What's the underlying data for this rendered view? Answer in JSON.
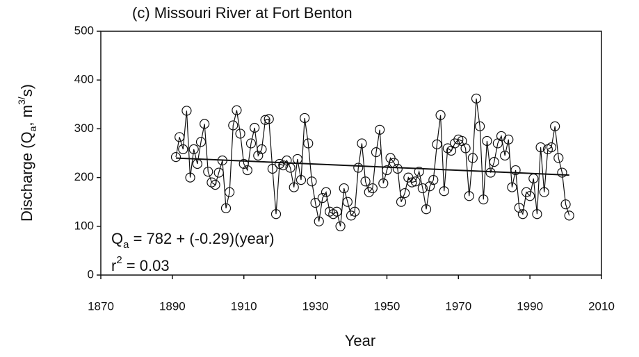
{
  "chart_data": {
    "type": "line",
    "title": "(c) Missouri River at Fort Benton",
    "x_label": "Year",
    "y_label_parts": [
      "Discharge (Q",
      "a",
      ", m",
      "3/",
      "s)"
    ],
    "annotations": [
      [
        "Q",
        "a",
        " = 782 + (-0.29)(year)"
      ],
      [
        "r",
        "2",
        " = 0.03"
      ]
    ],
    "xlim": [
      1870,
      2010
    ],
    "xticks": [
      1870,
      1890,
      1910,
      1930,
      1950,
      1970,
      1990,
      2010
    ],
    "ylim": [
      0,
      500
    ],
    "yticks": [
      0,
      100,
      200,
      300,
      400,
      500
    ],
    "x": [
      1891,
      1892,
      1893,
      1894,
      1895,
      1896,
      1897,
      1898,
      1899,
      1900,
      1901,
      1902,
      1903,
      1904,
      1905,
      1906,
      1907,
      1908,
      1909,
      1910,
      1911,
      1912,
      1913,
      1914,
      1915,
      1916,
      1917,
      1918,
      1919,
      1920,
      1921,
      1922,
      1923,
      1924,
      1925,
      1926,
      1927,
      1928,
      1929,
      1930,
      1931,
      1932,
      1933,
      1934,
      1935,
      1936,
      1937,
      1938,
      1939,
      1940,
      1941,
      1942,
      1943,
      1944,
      1945,
      1946,
      1947,
      1948,
      1949,
      1950,
      1951,
      1952,
      1953,
      1954,
      1955,
      1956,
      1957,
      1958,
      1959,
      1960,
      1961,
      1962,
      1963,
      1964,
      1965,
      1966,
      1967,
      1968,
      1969,
      1970,
      1971,
      1972,
      1973,
      1974,
      1975,
      1976,
      1977,
      1978,
      1979,
      1980,
      1981,
      1982,
      1983,
      1984,
      1985,
      1986,
      1987,
      1988,
      1989,
      1990,
      1991,
      1992,
      1993,
      1994,
      1995,
      1996,
      1997,
      1998,
      1999,
      2000,
      2001
    ],
    "series": [
      {
        "color": "#111111",
        "values": [
          242,
          283,
          258,
          337,
          200,
          258,
          228,
          273,
          310,
          212,
          190,
          185,
          210,
          235,
          137,
          170,
          307,
          338,
          290,
          228,
          215,
          270,
          302,
          245,
          258,
          318,
          320,
          218,
          125,
          228,
          225,
          235,
          220,
          180,
          238,
          195,
          322,
          270,
          192,
          148,
          110,
          158,
          170,
          130,
          125,
          130,
          100,
          178,
          150,
          122,
          130,
          220,
          270,
          192,
          170,
          178,
          252,
          298,
          188,
          215,
          240,
          230,
          218,
          150,
          168,
          200,
          190,
          192,
          212,
          178,
          135,
          182,
          195,
          268,
          328,
          172,
          260,
          255,
          270,
          278,
          275,
          260,
          162,
          240,
          362,
          305,
          155,
          275,
          210,
          232,
          270,
          285,
          245,
          278,
          180,
          215,
          138,
          125,
          170,
          162,
          198,
          125,
          262,
          170,
          258,
          262,
          305,
          240,
          210,
          145,
          122
        ]
      }
    ],
    "trend": {
      "x": [
        1891,
        2001
      ],
      "values": [
        240,
        205
      ],
      "color": "#111111"
    }
  }
}
